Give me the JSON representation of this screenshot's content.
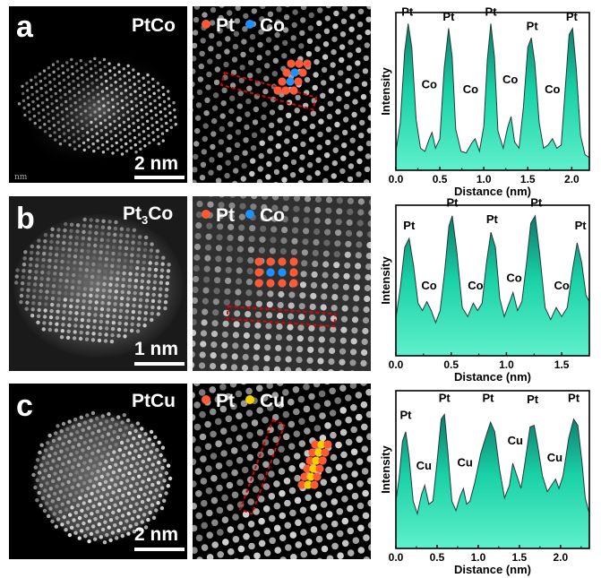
{
  "panels": [
    {
      "letter": "a",
      "name": "PtCo",
      "name_sub": "",
      "scale_label": "2 nm",
      "corner_text": "nm",
      "legend": [
        {
          "label": "Pt",
          "color": "#ff5a36"
        },
        {
          "label": "Co",
          "color": "#1e90ff"
        }
      ],
      "chart_data": {
        "type": "area",
        "xlabel": "Distance (nm)",
        "ylabel": "Intensity",
        "xlim": [
          0,
          2.2
        ],
        "xticks": [
          0.0,
          0.5,
          1.0,
          1.5,
          2.0
        ],
        "xtick_labels": [
          "0.0",
          "0.5",
          "1.0",
          "1.5",
          "2.0"
        ],
        "fill_color": "#19d1a6",
        "curve": [
          [
            0.0,
            0.12
          ],
          [
            0.05,
            0.3
          ],
          [
            0.1,
            0.75
          ],
          [
            0.14,
            0.93
          ],
          [
            0.18,
            0.78
          ],
          [
            0.23,
            0.32
          ],
          [
            0.28,
            0.14
          ],
          [
            0.33,
            0.12
          ],
          [
            0.38,
            0.2
          ],
          [
            0.41,
            0.24
          ],
          [
            0.45,
            0.14
          ],
          [
            0.5,
            0.2
          ],
          [
            0.55,
            0.65
          ],
          [
            0.6,
            0.9
          ],
          [
            0.64,
            0.72
          ],
          [
            0.68,
            0.26
          ],
          [
            0.74,
            0.12
          ],
          [
            0.8,
            0.11
          ],
          [
            0.86,
            0.17
          ],
          [
            0.9,
            0.2
          ],
          [
            0.95,
            0.12
          ],
          [
            1.0,
            0.28
          ],
          [
            1.04,
            0.7
          ],
          [
            1.08,
            0.93
          ],
          [
            1.12,
            0.72
          ],
          [
            1.16,
            0.25
          ],
          [
            1.22,
            0.14
          ],
          [
            1.27,
            0.27
          ],
          [
            1.31,
            0.34
          ],
          [
            1.35,
            0.18
          ],
          [
            1.4,
            0.14
          ],
          [
            1.45,
            0.4
          ],
          [
            1.5,
            0.78
          ],
          [
            1.54,
            0.84
          ],
          [
            1.58,
            0.68
          ],
          [
            1.63,
            0.3
          ],
          [
            1.68,
            0.14
          ],
          [
            1.73,
            0.16
          ],
          [
            1.78,
            0.2
          ],
          [
            1.83,
            0.14
          ],
          [
            1.88,
            0.16
          ],
          [
            1.93,
            0.55
          ],
          [
            1.97,
            0.86
          ],
          [
            2.01,
            0.9
          ],
          [
            2.05,
            0.65
          ],
          [
            2.1,
            0.22
          ],
          [
            2.15,
            0.1
          ],
          [
            2.2,
            0.08
          ]
        ],
        "peak_labels": [
          {
            "text": "Pt",
            "x": 0.13,
            "y": 0.98
          },
          {
            "text": "Co",
            "x": 0.38,
            "y": 0.52
          },
          {
            "text": "Pt",
            "x": 0.6,
            "y": 0.95
          },
          {
            "text": "Co",
            "x": 0.85,
            "y": 0.49
          },
          {
            "text": "Pt",
            "x": 1.08,
            "y": 0.98
          },
          {
            "text": "Co",
            "x": 1.3,
            "y": 0.55
          },
          {
            "text": "Pt",
            "x": 1.55,
            "y": 0.89
          },
          {
            "text": "Co",
            "x": 1.78,
            "y": 0.49
          },
          {
            "text": "Pt",
            "x": 2.0,
            "y": 0.95
          }
        ]
      }
    },
    {
      "letter": "b",
      "name": "Pt",
      "name_sub": "3",
      "name_tail": "Co",
      "scale_label": "1 nm",
      "corner_text": "",
      "legend": [
        {
          "label": "Pt",
          "color": "#ff5a36"
        },
        {
          "label": "Co",
          "color": "#1e90ff"
        }
      ],
      "chart_data": {
        "type": "area",
        "xlabel": "Distance (nm)",
        "ylabel": "Intensity",
        "xlim": [
          0,
          1.75
        ],
        "xticks": [
          0.0,
          0.5,
          1.0,
          1.5
        ],
        "xtick_labels": [
          "0.0",
          "0.5",
          "1.0",
          "1.5"
        ],
        "fill_color": "#19d1a6",
        "curve": [
          [
            0.0,
            0.25
          ],
          [
            0.04,
            0.45
          ],
          [
            0.08,
            0.72
          ],
          [
            0.12,
            0.78
          ],
          [
            0.16,
            0.6
          ],
          [
            0.2,
            0.35
          ],
          [
            0.24,
            0.3
          ],
          [
            0.28,
            0.36
          ],
          [
            0.32,
            0.3
          ],
          [
            0.36,
            0.22
          ],
          [
            0.4,
            0.3
          ],
          [
            0.44,
            0.55
          ],
          [
            0.48,
            0.86
          ],
          [
            0.51,
            0.93
          ],
          [
            0.55,
            0.7
          ],
          [
            0.6,
            0.32
          ],
          [
            0.65,
            0.26
          ],
          [
            0.7,
            0.35
          ],
          [
            0.74,
            0.3
          ],
          [
            0.78,
            0.35
          ],
          [
            0.82,
            0.62
          ],
          [
            0.86,
            0.82
          ],
          [
            0.9,
            0.72
          ],
          [
            0.94,
            0.38
          ],
          [
            0.98,
            0.26
          ],
          [
            1.02,
            0.34
          ],
          [
            1.06,
            0.42
          ],
          [
            1.1,
            0.3
          ],
          [
            1.14,
            0.36
          ],
          [
            1.18,
            0.6
          ],
          [
            1.22,
            0.88
          ],
          [
            1.26,
            0.93
          ],
          [
            1.3,
            0.68
          ],
          [
            1.35,
            0.32
          ],
          [
            1.4,
            0.24
          ],
          [
            1.45,
            0.32
          ],
          [
            1.5,
            0.26
          ],
          [
            1.55,
            0.32
          ],
          [
            1.6,
            0.58
          ],
          [
            1.64,
            0.75
          ],
          [
            1.68,
            0.62
          ],
          [
            1.72,
            0.4
          ],
          [
            1.75,
            0.36
          ]
        ],
        "peak_labels": [
          {
            "text": "Pt",
            "x": 0.12,
            "y": 0.84
          },
          {
            "text": "Co",
            "x": 0.3,
            "y": 0.44
          },
          {
            "text": "Pt",
            "x": 0.51,
            "y": 0.99
          },
          {
            "text": "Co",
            "x": 0.72,
            "y": 0.44
          },
          {
            "text": "Pt",
            "x": 0.87,
            "y": 0.88
          },
          {
            "text": "Co",
            "x": 1.07,
            "y": 0.49
          },
          {
            "text": "Pt",
            "x": 1.27,
            "y": 0.99
          },
          {
            "text": "Co",
            "x": 1.5,
            "y": 0.44
          },
          {
            "text": "Pt",
            "x": 1.67,
            "y": 0.84
          }
        ]
      }
    },
    {
      "letter": "c",
      "name": "PtCu",
      "name_sub": "",
      "scale_label": "2 nm",
      "corner_text": "",
      "legend": [
        {
          "label": "Pt",
          "color": "#ff5a36"
        },
        {
          "label": "Cu",
          "color": "#f5d000"
        }
      ],
      "chart_data": {
        "type": "area",
        "xlabel": "Distance (nm)",
        "ylabel": "Intensity",
        "xlim": [
          0,
          2.35
        ],
        "xticks": [
          0.0,
          0.5,
          1.0,
          1.5,
          2.0
        ],
        "xtick_labels": [
          "0.0",
          "0.5",
          "1.0",
          "1.5",
          "2.0"
        ],
        "fill_color": "#19d1a6",
        "curve": [
          [
            0.0,
            0.3
          ],
          [
            0.04,
            0.45
          ],
          [
            0.08,
            0.68
          ],
          [
            0.12,
            0.74
          ],
          [
            0.16,
            0.58
          ],
          [
            0.21,
            0.3
          ],
          [
            0.26,
            0.22
          ],
          [
            0.31,
            0.34
          ],
          [
            0.35,
            0.4
          ],
          [
            0.4,
            0.28
          ],
          [
            0.45,
            0.3
          ],
          [
            0.5,
            0.55
          ],
          [
            0.55,
            0.82
          ],
          [
            0.59,
            0.85
          ],
          [
            0.63,
            0.62
          ],
          [
            0.68,
            0.3
          ],
          [
            0.73,
            0.24
          ],
          [
            0.78,
            0.33
          ],
          [
            0.82,
            0.38
          ],
          [
            0.86,
            0.28
          ],
          [
            0.9,
            0.3
          ],
          [
            0.96,
            0.42
          ],
          [
            1.03,
            0.6
          ],
          [
            1.1,
            0.72
          ],
          [
            1.15,
            0.8
          ],
          [
            1.2,
            0.74
          ],
          [
            1.26,
            0.5
          ],
          [
            1.32,
            0.32
          ],
          [
            1.38,
            0.4
          ],
          [
            1.42,
            0.54
          ],
          [
            1.47,
            0.46
          ],
          [
            1.52,
            0.38
          ],
          [
            1.57,
            0.55
          ],
          [
            1.63,
            0.77
          ],
          [
            1.68,
            0.78
          ],
          [
            1.72,
            0.66
          ],
          [
            1.78,
            0.46
          ],
          [
            1.84,
            0.36
          ],
          [
            1.89,
            0.4
          ],
          [
            1.94,
            0.44
          ],
          [
            1.98,
            0.38
          ],
          [
            2.03,
            0.46
          ],
          [
            2.1,
            0.7
          ],
          [
            2.16,
            0.82
          ],
          [
            2.21,
            0.78
          ],
          [
            2.26,
            0.55
          ],
          [
            2.3,
            0.32
          ],
          [
            2.35,
            0.22
          ]
        ],
        "peak_labels": [
          {
            "text": "Pt",
            "x": 0.12,
            "y": 0.82
          },
          {
            "text": "Cu",
            "x": 0.34,
            "y": 0.5
          },
          {
            "text": "Pt",
            "x": 0.59,
            "y": 0.93
          },
          {
            "text": "Cu",
            "x": 0.84,
            "y": 0.52
          },
          {
            "text": "Pt",
            "x": 1.12,
            "y": 0.93
          },
          {
            "text": "Cu",
            "x": 1.45,
            "y": 0.66
          },
          {
            "text": "Pt",
            "x": 1.66,
            "y": 0.92
          },
          {
            "text": "Cu",
            "x": 1.93,
            "y": 0.55
          },
          {
            "text": "Pt",
            "x": 2.16,
            "y": 0.93
          }
        ]
      }
    }
  ]
}
